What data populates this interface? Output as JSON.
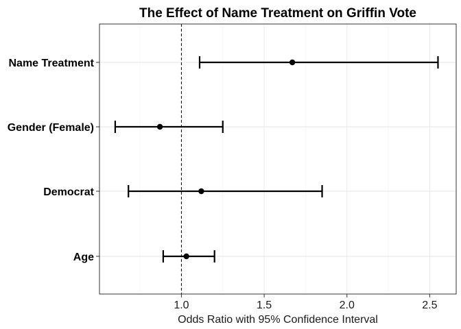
{
  "chart_data": {
    "type": "errorbar",
    "title": "The Effect of Name Treatment on Griffin Vote",
    "xlabel": "Odds Ratio with 95% Confidence Interval",
    "ylabel": "",
    "xlim": [
      0.505,
      2.66
    ],
    "x_ticks": [
      1.0,
      1.5,
      2.0,
      2.5
    ],
    "x_tick_labels": [
      "1.0",
      "1.5",
      "2.0",
      "2.5"
    ],
    "reference_line": 1.0,
    "grid": true,
    "categories": [
      "Name Treatment",
      "Gender (Female)",
      "Democrat",
      "Age"
    ],
    "estimates": [
      1.67,
      0.87,
      1.12,
      1.03
    ],
    "lower": [
      1.11,
      0.6,
      0.68,
      0.89
    ],
    "upper": [
      2.55,
      1.25,
      1.85,
      1.2
    ]
  }
}
